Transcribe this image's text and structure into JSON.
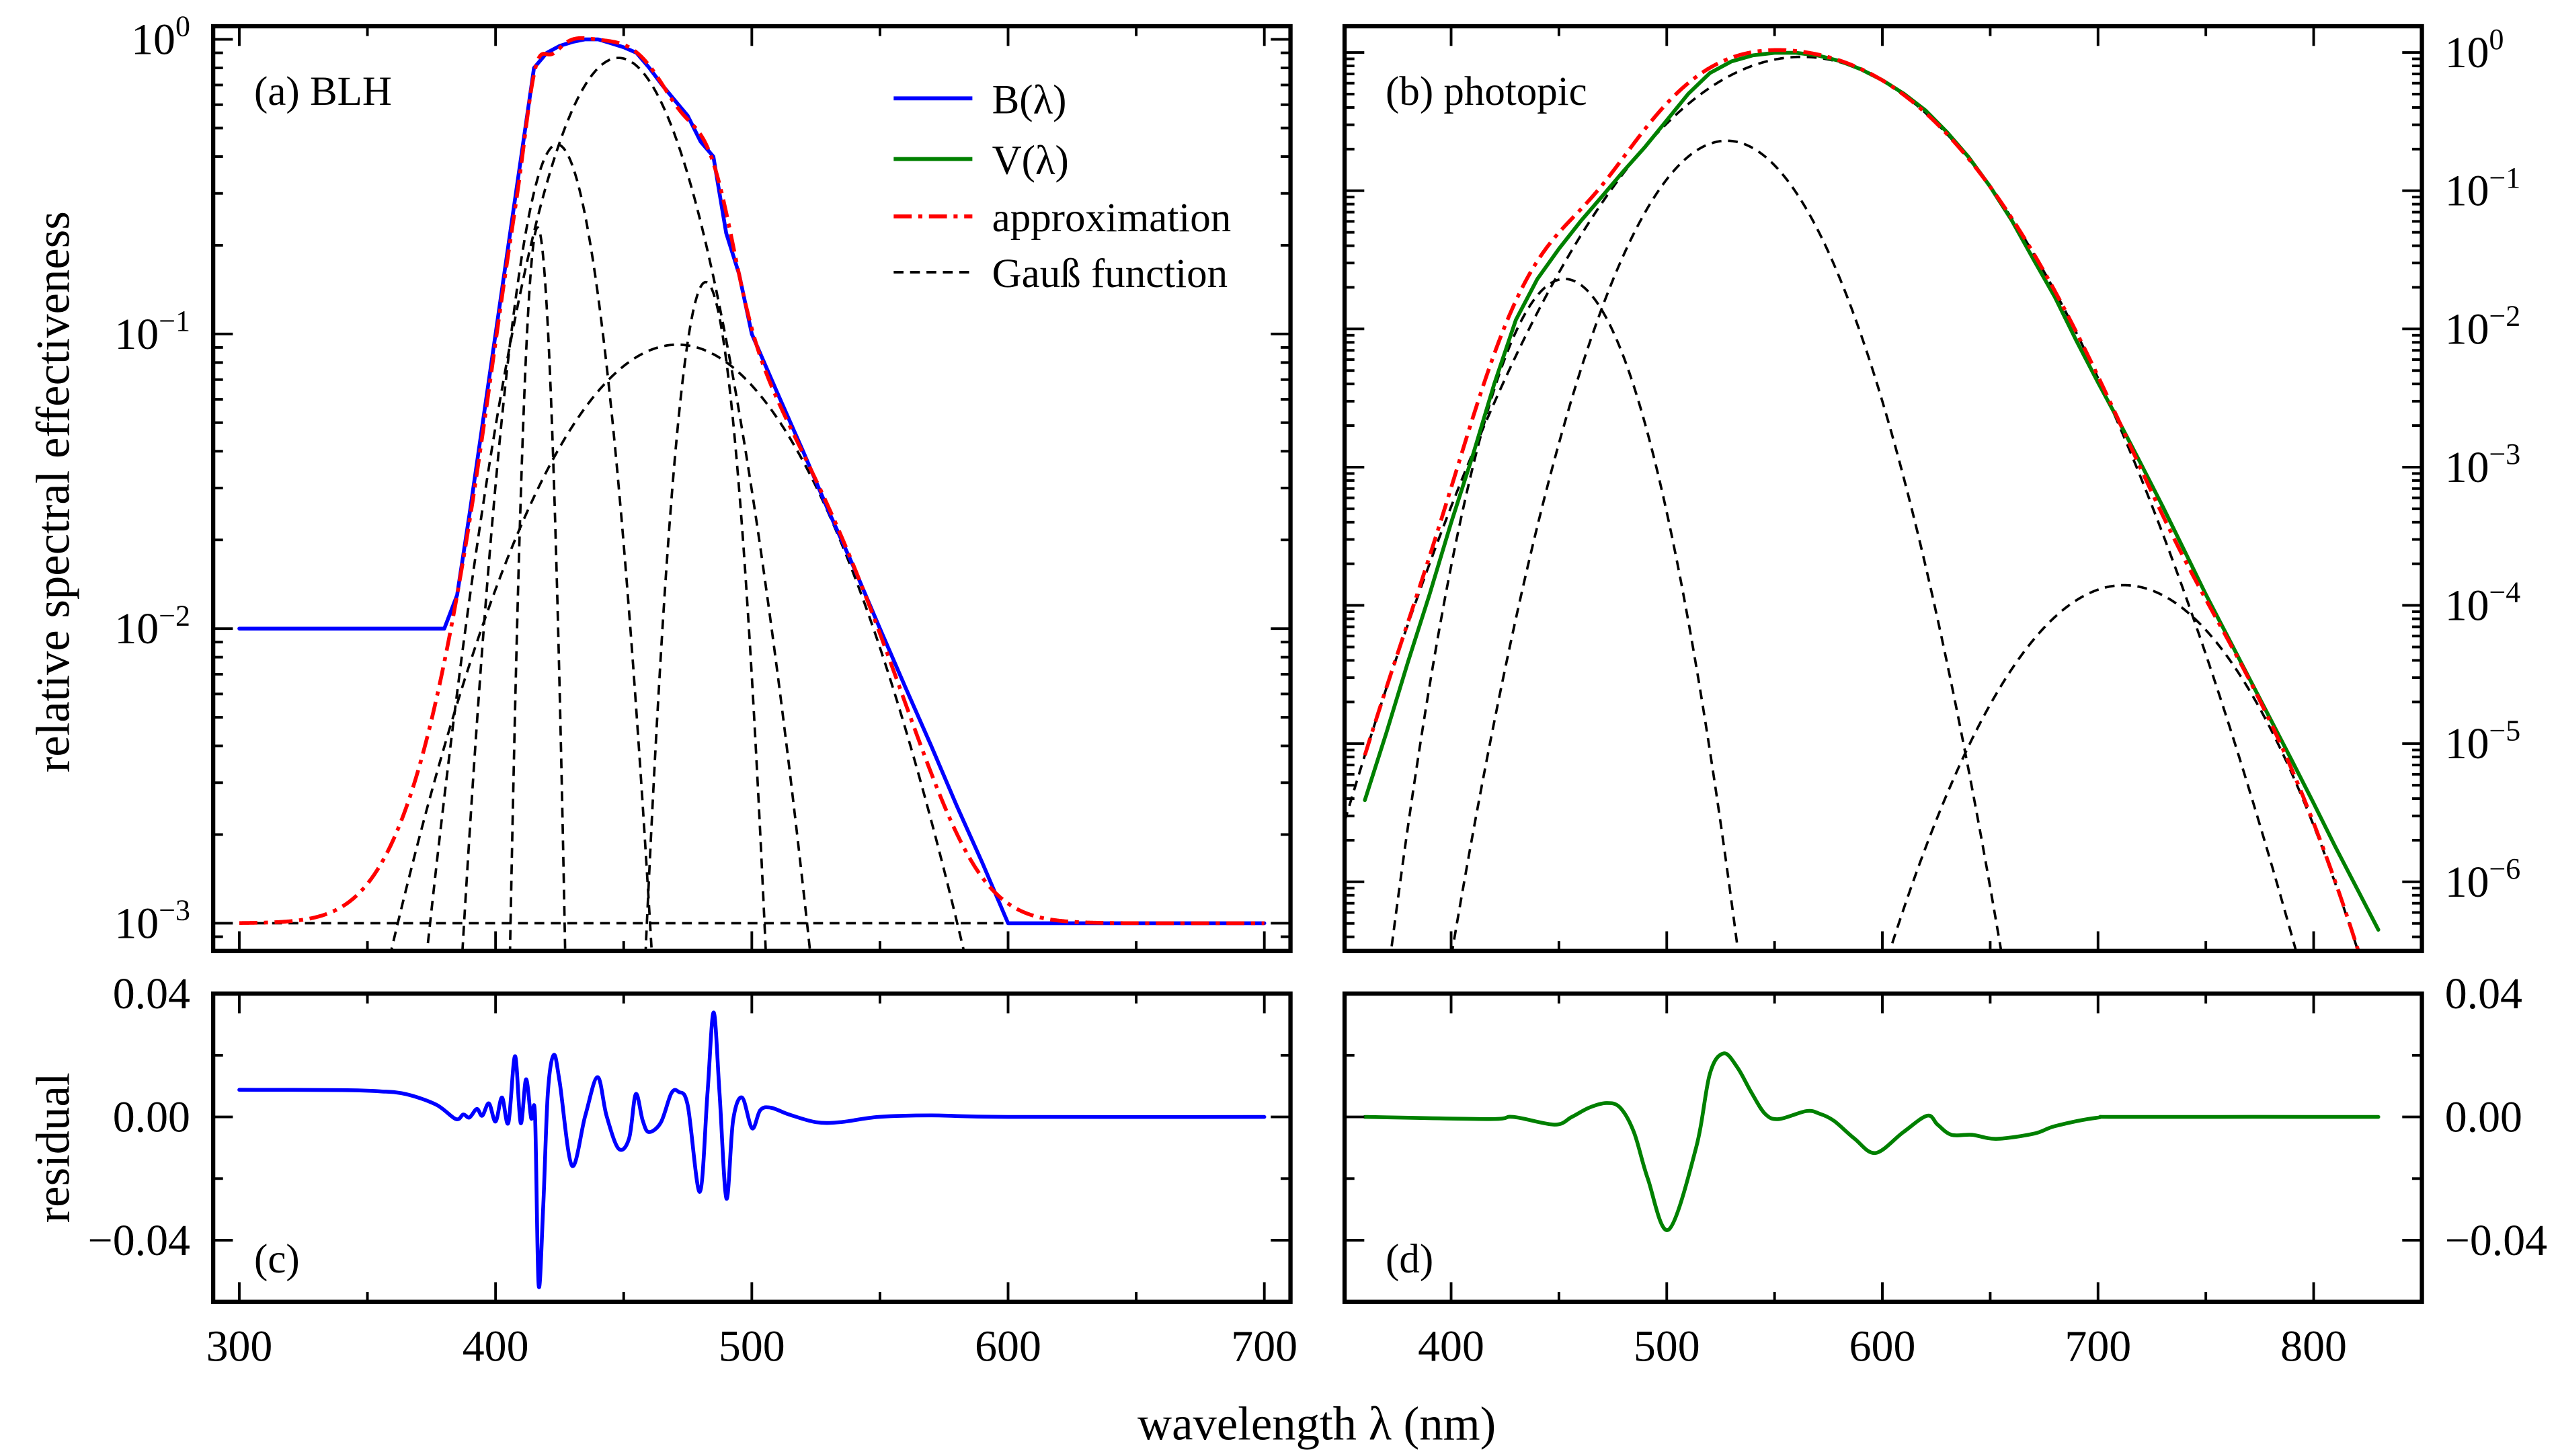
{
  "figure": {
    "xlabel": "wavelength λ (nm)",
    "ylabel_top": "relative spectral effectiveness",
    "ylabel_bottom": "residual"
  },
  "legend": [
    {
      "label": "B(λ)",
      "color": "#0000ff",
      "style": "solid"
    },
    {
      "label": "V(λ)",
      "color": "#008000",
      "style": "solid"
    },
    {
      "label": "approximation",
      "color": "#ff0000",
      "style": "dash-dot"
    },
    {
      "label": "Gauß function",
      "color": "#000000",
      "style": "dashed"
    }
  ],
  "chart_data": [
    {
      "id": "a",
      "type": "line",
      "panel_label": "(a) BLH",
      "xlim": [
        289.8,
        710.2
      ],
      "ylim": [
        0.000805,
        1.108
      ],
      "yscale": "log",
      "xticks": [
        300,
        400,
        500,
        600,
        700
      ],
      "xminor": [
        350,
        450,
        550,
        650
      ],
      "yticks": [
        {
          "value": 1,
          "base": "10",
          "exp": "0"
        },
        {
          "value": 0.1,
          "base": "10",
          "exp": "−1"
        },
        {
          "value": 0.01,
          "base": "10",
          "exp": "−2"
        },
        {
          "value": 0.001,
          "base": "10",
          "exp": "−3"
        }
      ],
      "series": [
        {
          "name": "B(λ)",
          "color": "#0000ff",
          "x": [
            300,
            380,
            385,
            390,
            395,
            400,
            405,
            410,
            415,
            420,
            425,
            430,
            435,
            440,
            445,
            450,
            455,
            460,
            465,
            470,
            475,
            480,
            485,
            490,
            495,
            500,
            510,
            520,
            530,
            540,
            550,
            560,
            570,
            580,
            590,
            600,
            700
          ],
          "y": [
            0.01,
            0.01,
            0.013,
            0.025,
            0.05,
            0.1,
            0.2,
            0.4,
            0.8,
            0.9,
            0.95,
            0.98,
            1.0,
            1.0,
            0.97,
            0.94,
            0.9,
            0.8,
            0.7,
            0.62,
            0.55,
            0.45,
            0.4,
            0.22,
            0.16,
            0.1,
            0.063,
            0.04,
            0.025,
            0.016,
            0.01,
            0.0063,
            0.004,
            0.0025,
            0.0016,
            0.001,
            0.001
          ]
        }
      ],
      "approximation": {
        "name": "approximation",
        "color": "#ff0000",
        "range": [
          300,
          700
        ],
        "definition": "sum of Gauß functions + constant"
      },
      "gaussians": [
        {
          "amplitude": 0.23,
          "center": 416.4,
          "sigma": 3.2
        },
        {
          "amplitude": 0.44,
          "center": 424,
          "sigma": 10.4
        },
        {
          "amplitude": 0.865,
          "center": 448,
          "sigma": 20.0
        },
        {
          "amplitude": 0.15,
          "center": 482,
          "sigma": 7.25
        },
        {
          "amplitude": 0.092,
          "center": 471,
          "sigma": 36.3
        }
      ],
      "constant": 0.001
    },
    {
      "id": "b",
      "type": "line",
      "panel_label": "(b) photopic",
      "xlim": [
        350.6,
        850.2
      ],
      "ylim": [
        3.16e-07,
        1.549
      ],
      "yscale": "log",
      "xticks": [
        400,
        500,
        600,
        700,
        800
      ],
      "xminor": [
        450,
        550,
        650,
        750
      ],
      "yticks": [
        {
          "value": 1,
          "base": "10",
          "exp": "0"
        },
        {
          "value": 0.1,
          "base": "10",
          "exp": "−1"
        },
        {
          "value": 0.01,
          "base": "10",
          "exp": "−2"
        },
        {
          "value": 0.001,
          "base": "10",
          "exp": "−3"
        },
        {
          "value": 0.0001,
          "base": "10",
          "exp": "−4"
        },
        {
          "value": 1e-05,
          "base": "10",
          "exp": "−5"
        },
        {
          "value": 1e-06,
          "base": "10",
          "exp": "−6"
        }
      ],
      "series": [
        {
          "name": "V(λ)",
          "color": "#008000",
          "x": [
            360,
            370,
            380,
            390,
            400,
            410,
            420,
            430,
            440,
            450,
            460,
            470,
            480,
            490,
            500,
            510,
            520,
            530,
            540,
            550,
            560,
            570,
            580,
            590,
            600,
            610,
            620,
            630,
            640,
            650,
            660,
            670,
            680,
            690,
            700,
            710,
            720,
            730,
            740,
            750,
            760,
            770,
            780,
            790,
            800,
            810,
            820,
            830
          ],
          "y": [
            3.9e-06,
            1.2e-05,
            3.9e-05,
            0.00012,
            0.000396,
            0.00121,
            0.004,
            0.0116,
            0.023,
            0.038,
            0.06,
            0.091,
            0.139,
            0.208,
            0.323,
            0.503,
            0.71,
            0.862,
            0.954,
            0.995,
            0.995,
            0.952,
            0.87,
            0.757,
            0.631,
            0.503,
            0.381,
            0.265,
            0.175,
            0.107,
            0.061,
            0.032,
            0.017,
            0.0082,
            0.0041,
            0.0021,
            0.00105,
            0.00052,
            0.00025,
            0.00012,
            6e-05,
            3e-05,
            1.5e-05,
            7.5e-06,
            3.7e-06,
            1.8e-06,
            9e-07,
            4.5e-07
          ]
        }
      ],
      "approximation": {
        "name": "approximation",
        "color": "#ff0000",
        "range": [
          360,
          825
        ],
        "definition": "sum of Gauß functions"
      },
      "gaussians": [
        {
          "amplitude": 0.023,
          "center": 452.6,
          "sigma": 17.0
        },
        {
          "amplitude": 0.23,
          "center": 527.8,
          "sigma": 24.5
        },
        {
          "amplitude": 0.93,
          "center": 562.6,
          "sigma": 42.0
        },
        {
          "amplitude": 0.00014,
          "center": 712,
          "sigma": 31.1
        }
      ],
      "constant": 0
    },
    {
      "id": "c",
      "type": "line",
      "panel_label": "(c)",
      "xlim": [
        289.8,
        710.2
      ],
      "ylim": [
        -0.06,
        0.04
      ],
      "yscale": "linear",
      "xticks": [
        300,
        400,
        500,
        600,
        700
      ],
      "xtick_labels": [
        "300",
        "400",
        "500",
        "600",
        "700"
      ],
      "xminor": [
        350,
        450,
        550,
        650
      ],
      "yticks": [
        {
          "value": 0.04,
          "label": "0.04"
        },
        {
          "value": 0.0,
          "label": "0.00"
        },
        {
          "value": -0.04,
          "label": "−0.04"
        }
      ],
      "yminor": [
        0.02,
        -0.02
      ],
      "series": [
        {
          "name": "residual B",
          "color": "#0000ff",
          "x": [
            300,
            340,
            355,
            365,
            376.8,
            384.5,
            387.4,
            389.8,
            392.7,
            394.8,
            397.4,
            400,
            402.5,
            405,
            407.6,
            409.8,
            411.9,
            413.9,
            415.4,
            416.8,
            418.6,
            420.4,
            422.7,
            425,
            429.8,
            435,
            439.8,
            443.3,
            448,
            452.1,
            454.7,
            457.4,
            459.8,
            464.5,
            468.6,
            471.5,
            475,
            479.7,
            482.7,
            485.1,
            487.4,
            490.1,
            492.7,
            496.2,
            500.1,
            503.3,
            507.4,
            514.5,
            525,
            534.5,
            549.5,
            570,
            600,
            700
          ],
          "y": [
            0.0088,
            0.0087,
            0.0083,
            0.0074,
            0.004,
            -0.0007,
            0.0008,
            -0.0002,
            0.0026,
            0.0004,
            0.0044,
            -0.0015,
            0.0063,
            -0.0019,
            0.0197,
            -0.002,
            0.0122,
            -0.0004,
            0.0004,
            -0.0545,
            -0.029,
            0.0077,
            0.0201,
            0.0114,
            -0.0158,
            0.0004,
            0.0129,
            0.0004,
            -0.0103,
            -0.007,
            0.0074,
            -0.0011,
            -0.0049,
            -0.0018,
            0.0077,
            0.0081,
            0.0037,
            -0.0243,
            0.0077,
            0.0339,
            0.0077,
            -0.0265,
            -0.0011,
            0.0063,
            -0.0037,
            0.0022,
            0.003,
            0.0008,
            -0.0017,
            -0.0017,
            0.0,
            0.0005,
            0.0,
            0.0
          ]
        }
      ]
    },
    {
      "id": "d",
      "type": "line",
      "panel_label": "(d)",
      "xlim": [
        350.6,
        850.2
      ],
      "ylim": [
        -0.06,
        0.04
      ],
      "yscale": "linear",
      "xticks": [
        400,
        500,
        600,
        700,
        800
      ],
      "xtick_labels": [
        "400",
        "500",
        "600",
        "700",
        "800"
      ],
      "xminor": [
        450,
        550,
        650,
        750
      ],
      "yticks": [
        {
          "value": 0.04,
          "label": "0.04"
        },
        {
          "value": 0.0,
          "label": "0.00"
        },
        {
          "value": -0.04,
          "label": "−0.04"
        }
      ],
      "yminor": [
        0.02,
        -0.02
      ],
      "series": [
        {
          "name": "residual V",
          "color": "#008000",
          "x": [
            360,
            417.6,
            428.8,
            448,
            456,
            464,
            472,
            478.4,
            484.8,
            491.2,
            500.8,
            513.6,
            520,
            526.4,
            532.8,
            539.2,
            545.6,
            552,
            564.8,
            571,
            577.6,
            587,
            596.8,
            609.6,
            620.8,
            625.6,
            632,
            641.6,
            652.8,
            670.4,
            680,
            699.2,
            715,
            830
          ],
          "y": [
            0.0,
            -0.0007,
            0.0,
            -0.0025,
            0.0,
            0.003,
            0.0045,
            0.003,
            -0.005,
            -0.02,
            -0.0366,
            -0.01,
            0.014,
            0.0206,
            0.016,
            0.008,
            0.001,
            -0.0007,
            0.0019,
            0.001,
            -0.0013,
            -0.007,
            -0.0117,
            -0.005,
            0.0004,
            -0.0025,
            -0.0058,
            -0.0058,
            -0.0071,
            -0.0054,
            -0.003,
            -0.0003,
            0.0,
            0.0
          ]
        }
      ]
    }
  ]
}
